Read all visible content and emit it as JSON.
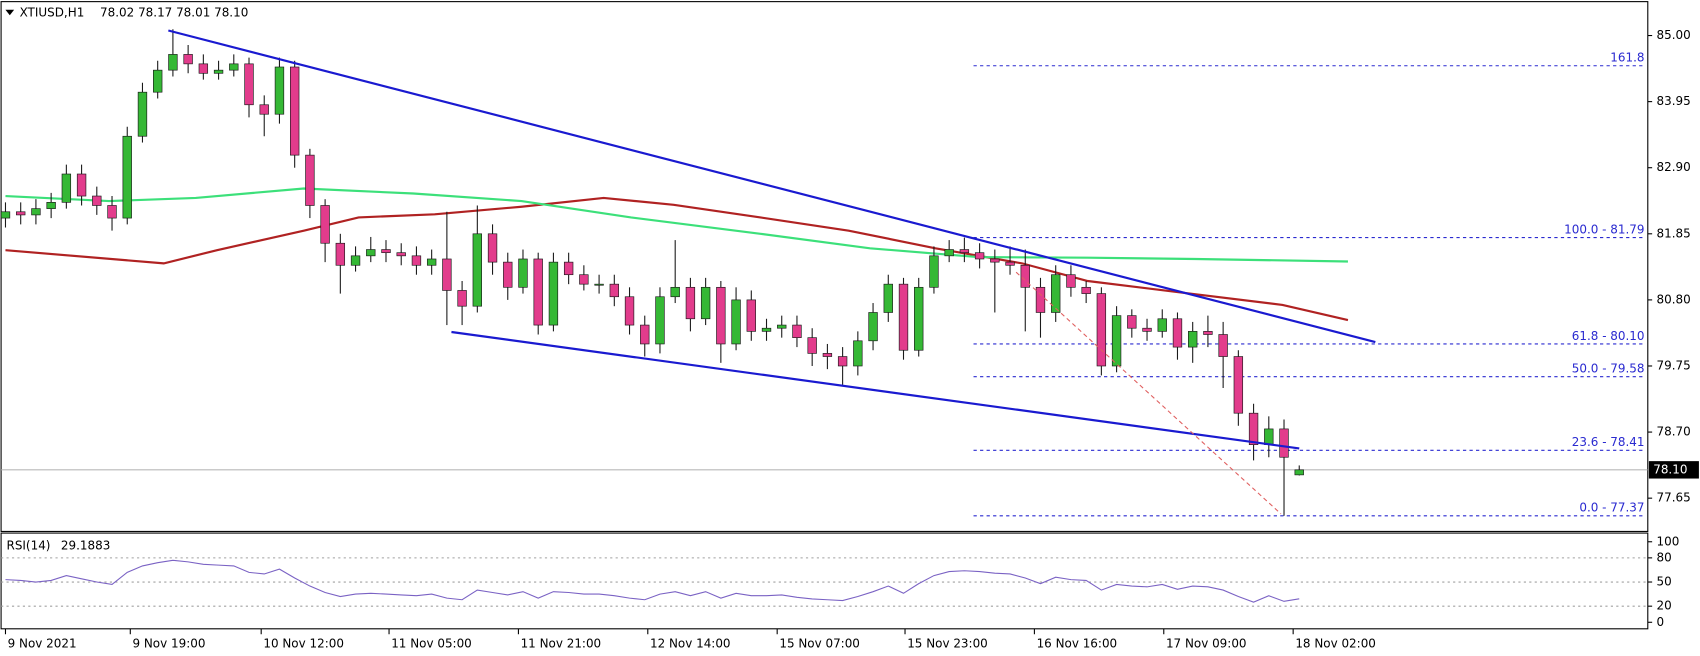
{
  "chart_data": [
    {
      "type": "candlestick",
      "symbol": "XTIUSD,H1",
      "quote": "78.02 78.17 78.01 78.10",
      "colors": {
        "up": "#35b835",
        "down": "#e23c8c",
        "wick": "#1a1a1a"
      },
      "open": [
        82.1,
        82.2,
        82.15,
        82.25,
        82.35,
        82.8,
        82.45,
        82.3,
        82.1,
        83.4,
        84.1,
        84.45,
        84.7,
        84.55,
        84.4,
        84.45,
        84.55,
        83.9,
        83.75,
        84.5,
        83.1,
        82.3,
        81.7,
        81.35,
        81.5,
        81.6,
        81.55,
        81.5,
        81.35,
        81.45,
        80.95,
        80.7,
        81.85,
        81.4,
        81.0,
        81.45,
        80.4,
        81.4,
        81.2,
        81.05,
        81.05,
        80.85,
        80.4,
        80.1,
        80.85,
        81.0,
        80.5,
        81.0,
        80.1,
        80.8,
        80.3,
        80.35,
        80.4,
        80.2,
        79.95,
        79.9,
        79.75,
        80.15,
        80.6,
        81.05,
        80.0,
        81.0,
        81.5,
        81.6,
        81.55,
        81.45,
        81.4,
        81.35,
        81.0,
        80.6,
        81.2,
        81.0,
        80.9,
        79.75,
        80.55,
        80.35,
        80.3,
        80.5,
        80.05,
        80.3,
        80.25,
        79.9,
        79.0,
        78.5,
        78.75,
        78.02
      ],
      "high": [
        82.35,
        82.35,
        82.4,
        82.5,
        82.95,
        82.95,
        82.6,
        82.45,
        83.55,
        84.25,
        84.6,
        85.1,
        84.85,
        84.7,
        84.6,
        84.7,
        84.65,
        84.05,
        84.65,
        84.6,
        83.2,
        82.4,
        81.85,
        81.65,
        81.8,
        81.75,
        81.7,
        81.65,
        81.6,
        82.2,
        81.1,
        82.3,
        82.0,
        81.55,
        81.6,
        81.55,
        81.55,
        81.55,
        81.35,
        81.2,
        81.2,
        81.0,
        80.55,
        81.0,
        81.75,
        81.15,
        81.15,
        81.1,
        81.0,
        80.95,
        80.5,
        80.55,
        80.55,
        80.35,
        80.1,
        80.05,
        80.3,
        80.75,
        81.2,
        81.15,
        81.15,
        81.65,
        81.75,
        81.79,
        81.7,
        81.6,
        81.65,
        81.6,
        81.15,
        81.35,
        81.35,
        81.1,
        81.0,
        80.7,
        80.65,
        80.5,
        80.65,
        80.6,
        80.45,
        80.55,
        80.45,
        80.0,
        79.15,
        78.95,
        78.9,
        78.17
      ],
      "low": [
        81.95,
        82.0,
        82.0,
        82.1,
        82.25,
        82.3,
        82.15,
        81.9,
        82.0,
        83.3,
        84.0,
        84.35,
        84.4,
        84.3,
        84.3,
        84.35,
        83.7,
        83.4,
        83.6,
        82.9,
        82.1,
        81.4,
        80.9,
        81.25,
        81.4,
        81.4,
        81.35,
        81.2,
        81.2,
        80.4,
        80.4,
        80.6,
        81.2,
        80.8,
        80.9,
        80.25,
        80.3,
        81.05,
        80.95,
        80.9,
        80.7,
        80.25,
        79.9,
        79.95,
        80.75,
        80.3,
        80.4,
        79.8,
        80.0,
        80.15,
        80.15,
        80.2,
        80.05,
        79.75,
        79.7,
        79.45,
        79.6,
        80.0,
        80.45,
        79.85,
        79.9,
        80.9,
        81.4,
        81.4,
        81.3,
        80.6,
        81.2,
        80.3,
        80.2,
        80.45,
        80.85,
        80.75,
        79.6,
        79.65,
        80.2,
        80.15,
        80.2,
        79.85,
        79.8,
        80.05,
        79.4,
        78.8,
        78.25,
        78.3,
        77.37,
        78.01
      ],
      "close": [
        82.2,
        82.15,
        82.25,
        82.35,
        82.8,
        82.45,
        82.3,
        82.1,
        83.4,
        84.1,
        84.45,
        84.7,
        84.55,
        84.4,
        84.45,
        84.55,
        83.9,
        83.75,
        84.5,
        83.1,
        82.3,
        81.7,
        81.35,
        81.5,
        81.6,
        81.55,
        81.5,
        81.35,
        81.45,
        80.95,
        80.7,
        81.85,
        81.4,
        81.0,
        81.45,
        80.4,
        81.4,
        81.2,
        81.05,
        81.05,
        80.85,
        80.4,
        80.1,
        80.85,
        81.0,
        80.5,
        81.0,
        80.1,
        80.8,
        80.3,
        80.35,
        80.4,
        80.2,
        79.95,
        79.9,
        79.75,
        80.15,
        80.6,
        81.05,
        80.0,
        81.0,
        81.5,
        81.6,
        81.55,
        81.45,
        81.4,
        81.35,
        81.0,
        80.6,
        81.2,
        81.0,
        80.9,
        79.75,
        80.55,
        80.35,
        80.3,
        80.5,
        80.05,
        80.3,
        80.25,
        79.9,
        79.0,
        78.5,
        78.75,
        78.3,
        78.1
      ],
      "xlim": [
        -0.36,
        107.9
      ],
      "ylim": [
        77.13,
        85.53
      ],
      "yticks": [
        {
          "value": 85.0,
          "label": "85.00"
        },
        83.95,
        {
          "value": 82.9,
          "label": "82.90"
        },
        81.85,
        {
          "value": 80.8,
          "label": "80.80"
        },
        79.75,
        {
          "value": 78.7,
          "label": "78.70"
        },
        77.65
      ],
      "xticks": [
        {
          "value": 0,
          "label": "9 Nov 2021"
        },
        {
          "value": 8.2,
          "label": "9 Nov 19:00"
        },
        {
          "value": 16.8,
          "label": "10 Nov 12:00"
        },
        {
          "value": 25.2,
          "label": "11 Nov 05:00"
        },
        {
          "value": 33.7,
          "label": "11 Nov 21:00"
        },
        {
          "value": 42.2,
          "label": "12 Nov 14:00"
        },
        {
          "value": 50.7,
          "label": "15 Nov 07:00"
        },
        {
          "value": 59.1,
          "label": "15 Nov 23:00"
        },
        {
          "value": 67.6,
          "label": "16 Nov 16:00"
        },
        {
          "value": 76.1,
          "label": "17 Nov 09:00"
        },
        {
          "value": 84.6,
          "label": "18 Nov 02:00"
        }
      ],
      "moving_averages": [
        {
          "color": "#b02222",
          "x": [
            0,
            10.4,
            13.9,
            19.6,
            23.2,
            28.2,
            33.9,
            39.3,
            43.9,
            49.6,
            55.4,
            61.1,
            66.8,
            71.1,
            76.8,
            83.9,
            88.2
          ],
          "values": [
            81.59,
            81.38,
            81.59,
            81.9,
            82.11,
            82.16,
            82.28,
            82.42,
            82.31,
            82.11,
            81.9,
            81.62,
            81.38,
            81.1,
            80.93,
            80.72,
            80.48
          ]
        },
        {
          "color": "#3ce07a",
          "x": [
            0,
            6.8,
            12.5,
            19.6,
            26.8,
            33.9,
            41.1,
            49.6,
            56.8,
            63.9,
            71.1,
            78.2,
            88.2
          ],
          "values": [
            82.45,
            82.37,
            82.42,
            82.57,
            82.49,
            82.37,
            82.11,
            81.85,
            81.62,
            81.48,
            81.47,
            81.45,
            81.41
          ]
        }
      ],
      "trendlines": [
        {
          "color": "#1a1ad0",
          "dashed": false,
          "x": [
            10.7,
            90.0
          ],
          "values": [
            85.08,
            80.13
          ]
        },
        {
          "color": "#1a1ad0",
          "dashed": false,
          "x": [
            29.3,
            85.0
          ],
          "values": [
            80.29,
            78.44
          ]
        },
        {
          "color": "#e06060",
          "dashed": true,
          "x": [
            66.4,
            83.8
          ],
          "values": [
            81.24,
            77.4
          ]
        }
      ],
      "fibonacci": {
        "color": "#2a2ad0",
        "start_x": 63.6,
        "levels": [
          {
            "value": 84.52,
            "label": "161.8"
          },
          {
            "value": 81.79,
            "label": "100.0 - 81.79"
          },
          {
            "value": 80.1,
            "label": "61.8 - 80.10"
          },
          {
            "value": 79.58,
            "label": "50.0 - 79.58"
          },
          {
            "value": 78.41,
            "label": "23.6 - 78.41"
          },
          {
            "value": 77.37,
            "label": "0.0 - 77.37"
          }
        ]
      },
      "last_price": {
        "value": 78.1,
        "label": "78.10"
      }
    },
    {
      "type": "line",
      "title": "RSI(14)",
      "color": "#7a62c4",
      "values": [
        53,
        52,
        50,
        52,
        58,
        54,
        50,
        47,
        62,
        70,
        74,
        77,
        75,
        72,
        71,
        70,
        62,
        60,
        66,
        55,
        45,
        37,
        32,
        35,
        36,
        35,
        34,
        33,
        35,
        30,
        28,
        40,
        37,
        34,
        38,
        30,
        38,
        37,
        35,
        35,
        33,
        30,
        28,
        35,
        38,
        33,
        38,
        30,
        36,
        33,
        33,
        34,
        31,
        29,
        28,
        27,
        32,
        38,
        45,
        36,
        48,
        58,
        63,
        64,
        63,
        61,
        60,
        55,
        48,
        56,
        53,
        52,
        40,
        47,
        45,
        44,
        47,
        41,
        45,
        44,
        40,
        32,
        25,
        33,
        26,
        29.1883
      ],
      "xlim": [
        -0.36,
        107.9
      ],
      "ylim": [
        -8.1,
        110.8
      ],
      "yticks": [
        100,
        80,
        50,
        20,
        0
      ],
      "levels": [
        80,
        50,
        20
      ]
    }
  ]
}
